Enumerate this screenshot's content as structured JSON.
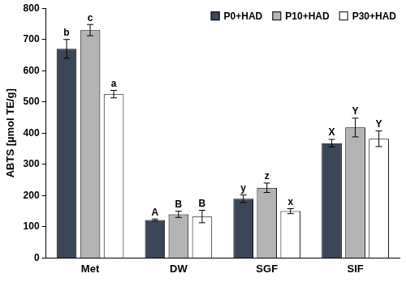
{
  "chart_data": {
    "type": "bar",
    "y_label": "ABTS [µmol TE/g]",
    "categories": [
      "Met",
      "DW",
      "SGF",
      "SIF"
    ],
    "series": [
      {
        "name": "P0+HAD",
        "color": "#3b4759",
        "values": [
          670,
          122,
          190,
          368
        ],
        "errors": [
          30,
          3,
          12,
          12
        ],
        "annotations": [
          "b",
          "A",
          "y",
          "X"
        ]
      },
      {
        "name": "P10+HAD",
        "color": "#b4b4b4",
        "values": [
          730,
          140,
          225,
          418
        ],
        "errors": [
          18,
          10,
          15,
          30
        ],
        "annotations": [
          "c",
          "B",
          "z",
          "Y"
        ]
      },
      {
        "name": "P30+HAD",
        "color": "#ffffff",
        "values": [
          525,
          133,
          150,
          382
        ],
        "errors": [
          12,
          20,
          8,
          25
        ],
        "annotations": [
          "a",
          "B",
          "x",
          "Y"
        ]
      }
    ],
    "ylim": [
      0,
      800
    ],
    "yticks": [
      0,
      100,
      200,
      300,
      400,
      500,
      600,
      700,
      800
    ],
    "grid": false,
    "legend": "upper right"
  }
}
